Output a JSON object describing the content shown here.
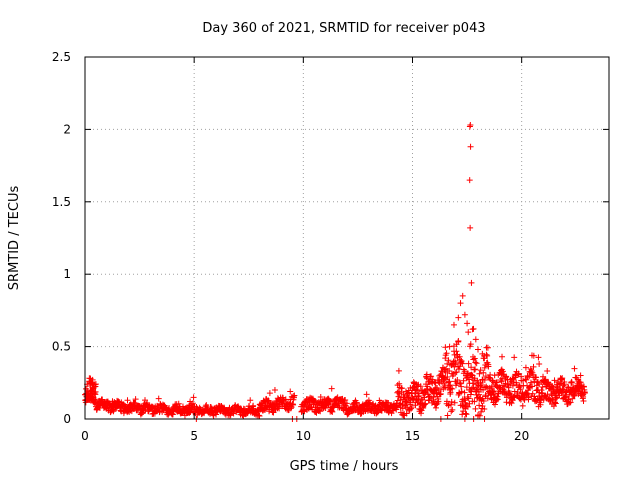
{
  "chart_data": {
    "type": "scatter",
    "title": "Day 360 of 2021, SRMTID for receiver p043",
    "xlabel": "GPS time / hours",
    "ylabel": "SRMTID / TECUs",
    "xlim": [
      0,
      24
    ],
    "ylim": [
      0,
      2.5
    ],
    "xticks": [
      0,
      5,
      10,
      15,
      20
    ],
    "xtick_labels": [
      "0",
      "5",
      "10",
      "15",
      "20"
    ],
    "yticks": [
      0,
      0.5,
      1,
      1.5,
      2,
      2.5
    ],
    "ytick_labels": [
      "0",
      "0.5",
      "1",
      "1.5",
      "2",
      "2.5"
    ],
    "grid": true,
    "marker": "+",
    "series": [
      {
        "name": "SRMTID",
        "color": "#ff0000",
        "segments": [
          {
            "x_start": 0.0,
            "x_end": 0.5,
            "baseline": [
              0.15,
              0.19
            ],
            "spread": 0.09,
            "points": 70
          },
          {
            "x_start": 0.5,
            "x_end": 2.0,
            "baseline": [
              0.1,
              0.07
            ],
            "spread": 0.04,
            "points": 120
          },
          {
            "x_start": 2.0,
            "x_end": 5.0,
            "baseline": [
              0.07,
              0.06
            ],
            "spread": 0.04,
            "points": 190
          },
          {
            "x_start": 5.0,
            "x_end": 8.0,
            "baseline": [
              0.06,
              0.055
            ],
            "spread": 0.035,
            "points": 180
          },
          {
            "x_start": 8.0,
            "x_end": 9.6,
            "baseline": [
              0.08,
              0.11
            ],
            "spread": 0.05,
            "points": 110
          },
          {
            "x_start": 9.9,
            "x_end": 12.0,
            "baseline": [
              0.09,
              0.1
            ],
            "spread": 0.05,
            "points": 150
          },
          {
            "x_start": 12.0,
            "x_end": 14.3,
            "baseline": [
              0.07,
              0.08
            ],
            "spread": 0.04,
            "points": 150
          },
          {
            "x_start": 14.3,
            "x_end": 16.5,
            "baseline": [
              0.1,
              0.22
            ],
            "spread": 0.12,
            "points": 190
          },
          {
            "x_start": 16.5,
            "x_end": 18.5,
            "baseline": [
              0.25,
              0.22
            ],
            "spread": 0.26,
            "points": 200
          },
          {
            "x_start": 18.5,
            "x_end": 21.0,
            "baseline": [
              0.22,
              0.2
            ],
            "spread": 0.12,
            "points": 210
          },
          {
            "x_start": 21.0,
            "x_end": 22.9,
            "baseline": [
              0.17,
              0.2
            ],
            "spread": 0.09,
            "points": 160
          }
        ],
        "peak_points": [
          {
            "x": 17.65,
            "y": 2.03
          },
          {
            "x": 17.63,
            "y": 2.02
          },
          {
            "x": 17.66,
            "y": 1.88
          },
          {
            "x": 17.62,
            "y": 1.65
          },
          {
            "x": 17.64,
            "y": 1.32
          },
          {
            "x": 17.7,
            "y": 0.94
          },
          {
            "x": 17.3,
            "y": 0.85
          },
          {
            "x": 17.2,
            "y": 0.8
          },
          {
            "x": 17.1,
            "y": 0.7
          },
          {
            "x": 17.4,
            "y": 0.72
          },
          {
            "x": 16.9,
            "y": 0.65
          },
          {
            "x": 17.5,
            "y": 0.66
          },
          {
            "x": 17.75,
            "y": 0.62
          },
          {
            "x": 17.9,
            "y": 0.55
          },
          {
            "x": 16.7,
            "y": 0.5
          },
          {
            "x": 18.0,
            "y": 0.48
          },
          {
            "x": 16.5,
            "y": 0.42
          },
          {
            "x": 18.2,
            "y": 0.45
          },
          {
            "x": 19.1,
            "y": 0.43
          },
          {
            "x": 20.8,
            "y": 0.38
          },
          {
            "x": 0.25,
            "y": 0.28
          },
          {
            "x": 0.35,
            "y": 0.27
          },
          {
            "x": 8.7,
            "y": 0.2
          },
          {
            "x": 9.4,
            "y": 0.19
          },
          {
            "x": 11.3,
            "y": 0.21
          },
          {
            "x": 12.9,
            "y": 0.17
          },
          {
            "x": 22.7,
            "y": 0.3
          }
        ],
        "zero_points": [
          {
            "x": 5.1,
            "y": 0
          },
          {
            "x": 9.5,
            "y": 0
          },
          {
            "x": 9.7,
            "y": 0
          },
          {
            "x": 16.3,
            "y": 0
          },
          {
            "x": 17.4,
            "y": 0
          },
          {
            "x": 17.8,
            "y": 0
          },
          {
            "x": 18.3,
            "y": 0
          }
        ]
      }
    ]
  }
}
